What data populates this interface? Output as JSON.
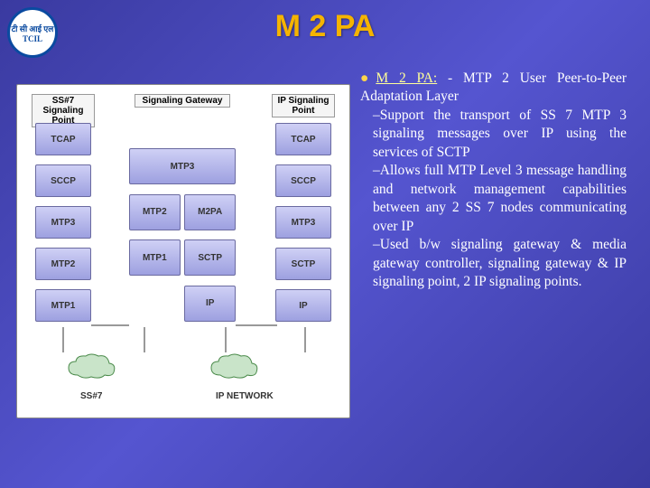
{
  "title": "M 2 PA",
  "logo_text": "टी सी आई एल\nTCIL",
  "text": {
    "head_label": "M 2 PA:",
    "head_after": " - MTP 2 User Peer-to-Peer Adaptation Layer",
    "sub1": "–Support the transport of SS 7 MTP 3 signaling messages over IP using the services of SCTP",
    "sub2": "–Allows full MTP Level 3 message handling and network management capabilities between any 2  SS 7 nodes communicating over IP",
    "sub3": "–Used b/w signaling gateway & media gateway controller, signaling gateway & IP signaling point, 2 IP signaling points."
  },
  "diagram": {
    "labels": {
      "ss7": "SS#7 Signaling Point",
      "gw": "Signaling Gateway",
      "ip": "IP Signaling Point"
    },
    "left_stack": [
      "TCAP",
      "SCCP",
      "MTP3",
      "MTP2",
      "MTP1"
    ],
    "right_stack": [
      "TCAP",
      "SCCP",
      "MTP3",
      "SCTP",
      "IP"
    ],
    "mid_stack": {
      "top": "MTP3",
      "row1": [
        "MTP2",
        "M2PA"
      ],
      "row2": [
        "MTP1",
        "SCTP"
      ],
      "bottom_right": "IP"
    },
    "net_labels": {
      "ss7": "SS#7",
      "ip": "IP NETWORK"
    },
    "colors": {
      "block_fill": "#cfd0f5",
      "block_dark": "#9da0e0",
      "block_border": "#6a6aa0",
      "cloud_fill": "#c9e4c9",
      "cloud_stroke": "#4a8a4a"
    }
  }
}
